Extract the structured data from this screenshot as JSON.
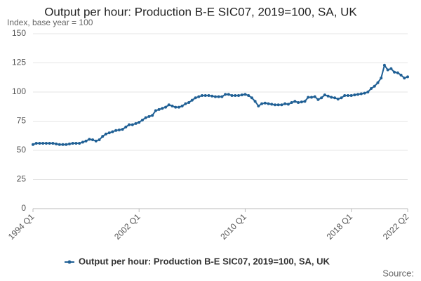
{
  "chart_data": {
    "type": "line",
    "title": "Output per hour: Production B-E SIC07, 2019=100, SA, UK",
    "y_label": "Index, base year = 100",
    "source": "Source:",
    "categories": [
      "1994 Q1",
      null,
      null,
      null,
      null,
      null,
      null,
      null,
      null,
      null,
      null,
      null,
      null,
      null,
      null,
      null,
      null,
      null,
      null,
      null,
      null,
      null,
      null,
      null,
      null,
      null,
      null,
      null,
      null,
      null,
      null,
      null,
      "2002 Q1",
      null,
      null,
      null,
      null,
      null,
      null,
      null,
      null,
      null,
      null,
      null,
      null,
      null,
      null,
      null,
      null,
      null,
      null,
      null,
      null,
      null,
      null,
      null,
      null,
      null,
      null,
      null,
      null,
      null,
      null,
      null,
      "2010 Q1",
      null,
      null,
      null,
      null,
      null,
      null,
      null,
      null,
      null,
      null,
      null,
      null,
      null,
      null,
      null,
      null,
      null,
      null,
      null,
      null,
      null,
      null,
      null,
      null,
      null,
      null,
      null,
      null,
      null,
      null,
      null,
      "2018 Q1",
      null,
      null,
      null,
      null,
      null,
      null,
      null,
      null,
      null,
      null,
      null,
      null,
      null,
      null,
      null,
      null,
      "2022 Q2"
    ],
    "series": [
      {
        "name": "Output per hour: Production B-E SIC07, 2019=100, SA, UK",
        "color": "#206095",
        "values": [
          55,
          56,
          56,
          56,
          56,
          56,
          56,
          55.5,
          55,
          55,
          55,
          55.5,
          56,
          56,
          56,
          57,
          58,
          59.5,
          59,
          58,
          59,
          62,
          64,
          65,
          66,
          67,
          67.5,
          68,
          70,
          72,
          72,
          73,
          74,
          76,
          78,
          79,
          80,
          84,
          85,
          86,
          87,
          89,
          88,
          87,
          87,
          88,
          90,
          91,
          93,
          95,
          96,
          97,
          97,
          97,
          96.5,
          96,
          96,
          96,
          98,
          98,
          97,
          97,
          97,
          97.5,
          98,
          97,
          95,
          92,
          88,
          90,
          90.5,
          90,
          89.5,
          89,
          89,
          89,
          90,
          89.5,
          91,
          92,
          91,
          91.5,
          92,
          95.5,
          95.5,
          96,
          93.5,
          95,
          97.5,
          96.5,
          95.5,
          95,
          94,
          95,
          97,
          97,
          97,
          97.5,
          98,
          98.5,
          99,
          100,
          103,
          105,
          108,
          112,
          123,
          119,
          120,
          117,
          116.5,
          114.5,
          112,
          113
        ]
      }
    ],
    "ylim": [
      0,
      150
    ],
    "yticks": [
      0,
      25,
      50,
      75,
      100,
      125,
      150
    ],
    "grid": true
  }
}
